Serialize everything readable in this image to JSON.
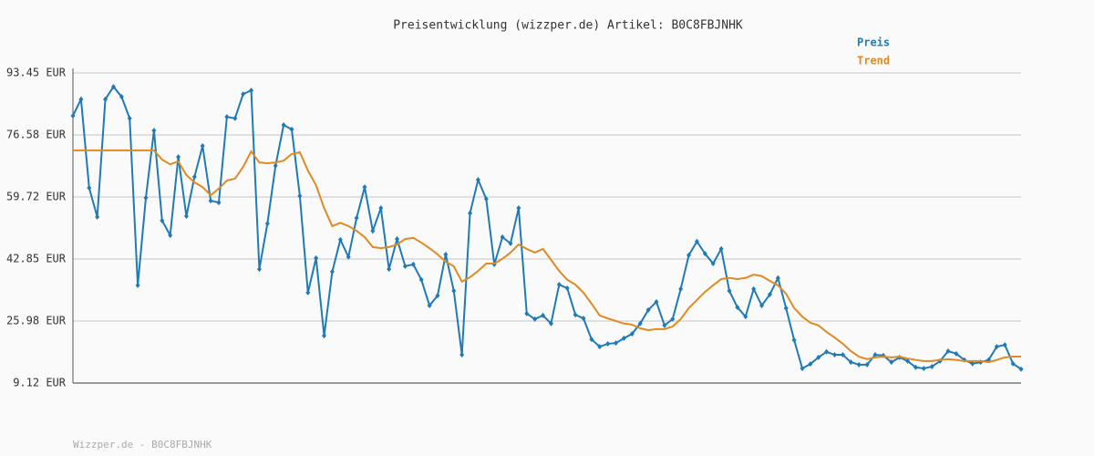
{
  "chart_data": {
    "type": "line",
    "title": "Preisentwicklung (wizzper.de) Artikel: B0C8FBJNHK",
    "footer": "Wizzper.de - B0C8FBJNHK",
    "ylim": [
      9.12,
      93.45
    ],
    "yticks": [
      {
        "value": 9.12,
        "label": "9.12 EUR"
      },
      {
        "value": 25.98,
        "label": "25.98 EUR"
      },
      {
        "value": 42.85,
        "label": "42.85 EUR"
      },
      {
        "value": 59.72,
        "label": "59.72 EUR"
      },
      {
        "value": 76.58,
        "label": "76.58 EUR"
      },
      {
        "value": 93.45,
        "label": "93.45 EUR"
      }
    ],
    "grid": true,
    "legend": "top-right",
    "series": [
      {
        "name": "Preis",
        "color": "#1f7bb5",
        "markers": true,
        "values": [
          81.8,
          86.3,
          62.2,
          54.3,
          86.3,
          89.7,
          87.0,
          81.1,
          35.7,
          59.5,
          77.8,
          53.3,
          49.3,
          70.6,
          54.5,
          65.2,
          73.6,
          58.7,
          58.2,
          81.5,
          81.1,
          87.7,
          88.7,
          40.1,
          52.5,
          68.2,
          79.3,
          78.1,
          60.0,
          33.7,
          43.1,
          22.0,
          39.4,
          48.1,
          43.4,
          54.0,
          62.4,
          50.5,
          56.7,
          40.1,
          48.3,
          40.9,
          41.4,
          37.2,
          30.2,
          32.9,
          44.1,
          34.2,
          16.8,
          55.3,
          64.4,
          59.2,
          41.4,
          48.8,
          47.1,
          56.7,
          28.0,
          26.5,
          27.5,
          25.3,
          35.9,
          34.9,
          27.7,
          26.7,
          21.0,
          19.0,
          19.8,
          20.0,
          21.3,
          22.5,
          25.3,
          29.0,
          31.2,
          24.8,
          26.5,
          34.7,
          43.9,
          47.6,
          44.3,
          41.6,
          45.6,
          34.2,
          29.7,
          27.2,
          34.7,
          30.2,
          33.2,
          37.7,
          29.5,
          20.8,
          13.1,
          14.3,
          16.1,
          17.6,
          16.8,
          16.8,
          14.8,
          14.1,
          14.1,
          16.8,
          16.6,
          14.8,
          16.1,
          15.1,
          13.4,
          13.1,
          13.6,
          15.1,
          17.8,
          17.1,
          15.4,
          14.4,
          14.8,
          15.4,
          19.0,
          19.5,
          14.4,
          12.9
        ]
      },
      {
        "name": "Trend",
        "color": "#e08a22",
        "markers": false,
        "values": [
          72.4,
          72.4,
          72.4,
          72.4,
          72.4,
          72.4,
          72.4,
          72.4,
          72.4,
          72.4,
          72.4,
          69.9,
          68.6,
          69.4,
          65.7,
          63.7,
          62.4,
          60.2,
          62.0,
          64.2,
          64.7,
          67.9,
          72.1,
          69.1,
          68.9,
          69.1,
          69.6,
          71.4,
          71.9,
          66.9,
          62.9,
          56.7,
          51.8,
          52.7,
          51.8,
          50.5,
          48.8,
          46.1,
          45.8,
          46.1,
          46.8,
          48.3,
          48.6,
          47.3,
          45.8,
          44.1,
          42.1,
          40.9,
          36.7,
          37.9,
          39.6,
          41.6,
          41.6,
          42.9,
          44.6,
          46.8,
          45.6,
          44.6,
          45.6,
          42.6,
          39.6,
          37.2,
          35.9,
          33.7,
          30.7,
          27.5,
          26.7,
          26.0,
          25.3,
          25.0,
          24.0,
          23.5,
          23.8,
          23.8,
          24.5,
          26.5,
          29.5,
          31.7,
          33.9,
          35.7,
          37.4,
          37.7,
          37.4,
          37.7,
          38.6,
          38.2,
          36.9,
          35.7,
          33.4,
          29.5,
          27.2,
          25.5,
          24.8,
          23.0,
          21.5,
          19.8,
          17.8,
          16.3,
          15.6,
          16.1,
          16.3,
          16.1,
          16.3,
          15.8,
          15.4,
          15.1,
          15.1,
          15.4,
          15.6,
          15.4,
          15.1,
          15.1,
          15.1,
          14.8,
          15.4,
          16.1,
          16.3,
          16.3
        ]
      }
    ]
  }
}
